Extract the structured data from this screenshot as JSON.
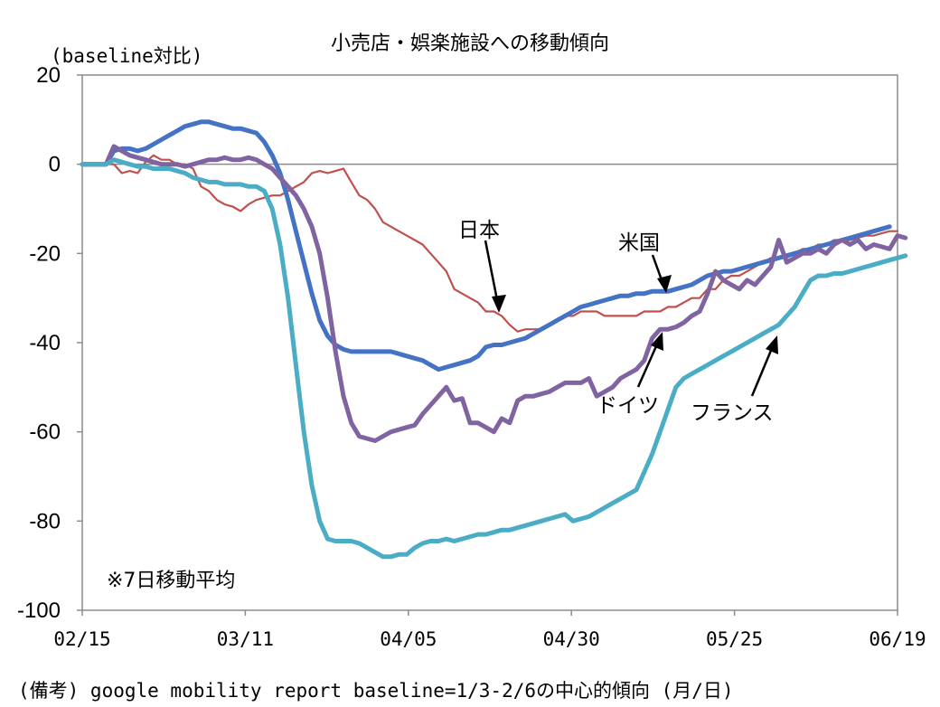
{
  "chart_data": {
    "type": "line",
    "title": "小売店・娯楽施設への移動傾向",
    "ylabel": "(baseline対比)",
    "xlabel": "",
    "ylim": [
      -100,
      20
    ],
    "yticks": [
      20,
      0,
      -20,
      -40,
      -60,
      -80,
      -100
    ],
    "xticks": [
      "02/15",
      "03/11",
      "04/05",
      "04/30",
      "05/25",
      "06/19"
    ],
    "x_start": "02/15",
    "x_end": "06/19",
    "grid": false,
    "zero_line": true,
    "note": "※7日移動平均",
    "series": [
      {
        "name": "日本",
        "color": "#C0504D",
        "values": [
          0,
          0,
          0,
          0,
          0,
          -2,
          -1.5,
          -2,
          0.5,
          2,
          1,
          1,
          0,
          0,
          -1,
          -5,
          -6,
          -8,
          -9,
          -9.5,
          -10.5,
          -9,
          -8,
          -7.5,
          -7,
          -7,
          -6,
          -5,
          -4,
          -2,
          -1.5,
          -2,
          -1.5,
          -1,
          -4,
          -7,
          -8,
          -10,
          -13,
          -14,
          -15,
          -16,
          -17,
          -18,
          -20,
          -22,
          -24,
          -28,
          -29,
          -30,
          -31,
          -33,
          -33,
          -34,
          -36,
          -37.5,
          -37,
          -37,
          -37,
          -36,
          -35,
          -34,
          -34,
          -33,
          -33,
          -33,
          -34,
          -34,
          -34,
          -34,
          -34,
          -33,
          -33,
          -33,
          -32,
          -32,
          -31,
          -30,
          -30,
          -28,
          -28,
          -26,
          -25,
          -25,
          -24,
          -23,
          -22,
          -21,
          -21,
          -21,
          -20,
          -19,
          -19,
          -18,
          -18,
          -17,
          -17,
          -17,
          -16.5,
          -16,
          -16,
          -15.5,
          -15,
          -15
        ]
      },
      {
        "name": "米国",
        "color": "#4472C4",
        "values": [
          0,
          0,
          0,
          0,
          3,
          3.5,
          3.5,
          3,
          3.5,
          4.5,
          5.5,
          6.5,
          7.5,
          8.5,
          9,
          9.5,
          9.5,
          9,
          8.5,
          8,
          8,
          7.5,
          7,
          5,
          2,
          -2,
          -8,
          -15,
          -22,
          -29,
          -35,
          -38.5,
          -40.5,
          -41.5,
          -42,
          -42,
          -42,
          -42,
          -42,
          -42,
          -42.5,
          -43,
          -43.5,
          -44,
          -45,
          -46,
          -45.5,
          -45,
          -44.5,
          -44,
          -43,
          -41,
          -40.5,
          -40.5,
          -40,
          -39.5,
          -39,
          -38,
          -37,
          -36,
          -35,
          -34,
          -33,
          -32,
          -31.5,
          -31,
          -30.5,
          -30,
          -29.5,
          -29.5,
          -29,
          -29,
          -28.5,
          -28.5,
          -28.5,
          -28,
          -27.5,
          -27,
          -26,
          -25,
          -24.5,
          -24,
          -24,
          -23.5,
          -23,
          -22.5,
          -22,
          -21.5,
          -21,
          -20.5,
          -20,
          -19.5,
          -19,
          -18.5,
          -18,
          -17.5,
          -17,
          -16.5,
          -16,
          -15.5,
          -15,
          -14.5,
          -14
        ]
      },
      {
        "name": "ドイツ",
        "color": "#8064A2",
        "values": [
          0,
          0,
          0,
          0,
          4,
          3,
          2,
          1.5,
          1,
          0.5,
          0,
          0,
          0,
          -0.5,
          0,
          0.5,
          1,
          1,
          1.5,
          1,
          1,
          1.5,
          1,
          0,
          -1,
          -3,
          -5,
          -7,
          -10,
          -14,
          -20,
          -30,
          -42,
          -52,
          -58,
          -61,
          -61.5,
          -62,
          -61,
          -60,
          -59.5,
          -59,
          -58.5,
          -56,
          -54,
          -52,
          -50,
          -53,
          -52.5,
          -58,
          -58,
          -59,
          -60,
          -57,
          -58,
          -53,
          -52,
          -52,
          -51.5,
          -51,
          -50,
          -49,
          -49,
          -49,
          -48,
          -52,
          -51,
          -50,
          -48,
          -47,
          -46,
          -44,
          -39,
          -37,
          -37,
          -36.5,
          -35.5,
          -34,
          -33,
          -29,
          -24,
          -26,
          -27,
          -28,
          -26,
          -27,
          -25,
          -23,
          -17,
          -22,
          -21,
          -20,
          -20,
          -19,
          -20,
          -18,
          -17,
          -18,
          -17,
          -19,
          -18,
          -18.5,
          -19,
          -16,
          -16.5
        ]
      },
      {
        "name": "フランス",
        "color": "#4BACC6",
        "values": [
          0,
          0,
          0,
          0,
          1,
          0.5,
          0,
          -0.5,
          -0.5,
          -1,
          -1,
          -1,
          -1.5,
          -2,
          -3,
          -3.5,
          -4,
          -4,
          -4.5,
          -4.5,
          -4.5,
          -5,
          -5,
          -6,
          -10,
          -18,
          -30,
          -45,
          -60,
          -72,
          -80,
          -84,
          -84.5,
          -84.5,
          -84.5,
          -85,
          -86,
          -87,
          -88,
          -88,
          -87.5,
          -87.5,
          -86,
          -85,
          -84.5,
          -84.5,
          -84,
          -84.5,
          -84,
          -83.5,
          -83,
          -83,
          -82.5,
          -82,
          -82,
          -81.5,
          -81,
          -80.5,
          -80,
          -79.5,
          -79,
          -78.5,
          -80,
          -79.5,
          -79,
          -78,
          -77,
          -76,
          -75,
          -74,
          -73,
          -69,
          -65,
          -60,
          -55,
          -50,
          -48,
          -47,
          -46,
          -45,
          -44,
          -43,
          -42,
          -41,
          -40,
          -39,
          -38,
          -37,
          -36,
          -34,
          -32,
          -29,
          -26,
          -25,
          -25,
          -24.5,
          -24.5,
          -24,
          -23.5,
          -23,
          -22.5,
          -22,
          -21.5,
          -21,
          -20.5
        ]
      }
    ]
  },
  "annotations": {
    "japan": "日本",
    "usa": "米国",
    "germany": "ドイツ",
    "france": "フランス"
  },
  "caption": "(備考) google mobility report  baseline=1/3-2/6の中心的傾向  (月/日)"
}
